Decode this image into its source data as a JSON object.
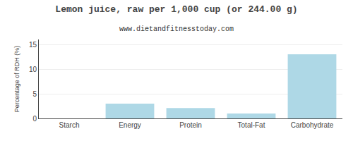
{
  "chart_data": {
    "type": "bar",
    "title": "Lemon juice, raw per 1,000 cup (or 244.00 g)",
    "subtitle": "www.dietandfitnesstoday.com",
    "categories": [
      "Starch",
      "Energy",
      "Protein",
      "Total-Fat",
      "Carbohydrate"
    ],
    "values": [
      0,
      3.0,
      2.1,
      1.0,
      13.0
    ],
    "color": "#aed8e6",
    "ylabel": "Percentage of RDH (%)",
    "ylim": [
      0,
      16
    ],
    "yticks": [
      0,
      5,
      10,
      15
    ],
    "grid": true
  }
}
